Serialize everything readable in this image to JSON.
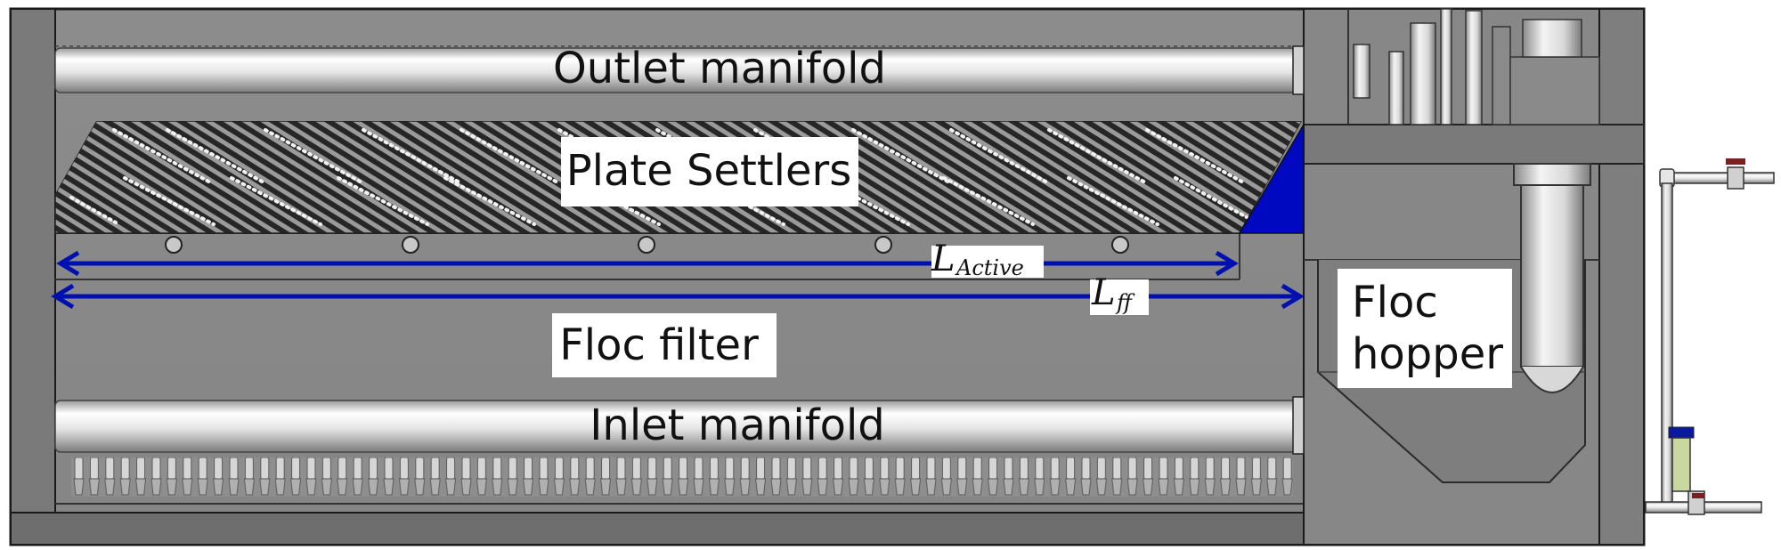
{
  "labels": {
    "outlet_manifold": "Outlet manifold",
    "plate_settlers": "Plate Settlers",
    "floc_filter": "Floc filter",
    "inlet_manifold": "Inlet manifold",
    "floc_hopper_line1": "Floc",
    "floc_hopper_line2": "hopper"
  },
  "dimensions": {
    "active": {
      "symbol": "L",
      "subscript": "Active"
    },
    "ff": {
      "symbol": "L",
      "subscript": "ff"
    }
  },
  "colors": {
    "dimension_line": "#0010b0",
    "wedge": "#0008c0",
    "valve_handle": "#7a1f22",
    "tank_body": "#8a8a8a",
    "plate_hatch": "#2a2a2a",
    "flow_meter": "#c8d8a0"
  }
}
